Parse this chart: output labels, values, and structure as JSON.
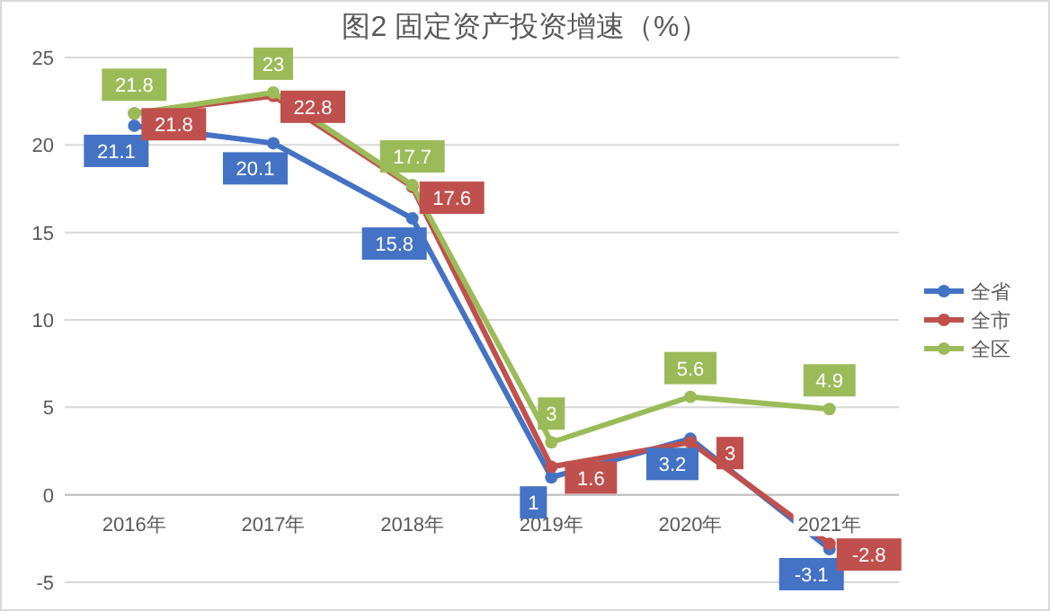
{
  "chart_data": {
    "type": "line",
    "title": "图2 固定资产投资增速（%）",
    "categories": [
      "2016年",
      "2017年",
      "2018年",
      "2019年",
      "2020年",
      "2021年"
    ],
    "series": [
      {
        "name": "全省",
        "color": "#4472c4",
        "values": [
          21.1,
          20.1,
          15.8,
          1,
          3.2,
          -3.1
        ]
      },
      {
        "name": "全市",
        "color": "#c0504d",
        "values": [
          21.8,
          22.8,
          17.6,
          1.6,
          3,
          -2.8
        ]
      },
      {
        "name": "全区",
        "color": "#9bbb59",
        "values": [
          21.8,
          23,
          17.7,
          3,
          5.6,
          4.9
        ]
      }
    ],
    "ylim": [
      -5,
      25
    ],
    "yticks": [
      -5,
      0,
      5,
      10,
      15,
      20,
      25
    ],
    "grid": "y",
    "legend": "right",
    "marker": "circle",
    "line_style": "solid",
    "data_labels": true
  }
}
